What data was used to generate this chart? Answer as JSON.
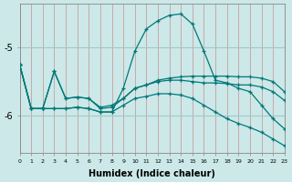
{
  "xlabel": "Humidex (Indice chaleur)",
  "background_color": "#cce8e8",
  "vgrid_color": "#c8a0a0",
  "hgrid_color": "#a0c8c8",
  "line_color": "#007878",
  "xlim": [
    0,
    23
  ],
  "ylim": [
    -6.55,
    -4.35
  ],
  "yticks": [
    -5,
    -6
  ],
  "xticks": [
    0,
    1,
    2,
    3,
    4,
    5,
    6,
    7,
    8,
    9,
    10,
    11,
    12,
    13,
    14,
    15,
    16,
    17,
    18,
    19,
    20,
    21,
    22,
    23
  ],
  "lines": [
    {
      "x": [
        0,
        1,
        2,
        3,
        4,
        5,
        6,
        7,
        8,
        9,
        10,
        11,
        12,
        13,
        14,
        15,
        16,
        17,
        18,
        19,
        20,
        21,
        22,
        23
      ],
      "y": [
        -5.25,
        -5.9,
        -5.9,
        -5.9,
        -5.9,
        -5.88,
        -5.9,
        -5.95,
        -5.95,
        -5.6,
        -5.05,
        -4.72,
        -4.6,
        -4.52,
        -4.5,
        -4.65,
        -5.05,
        -5.48,
        -5.52,
        -5.6,
        -5.65,
        -5.85,
        -6.05,
        -6.2
      ]
    },
    {
      "x": [
        0,
        1,
        2,
        3,
        4,
        5,
        6,
        7,
        8,
        9,
        10,
        11,
        12,
        13,
        14,
        15,
        16,
        17,
        18,
        19,
        20,
        21,
        22,
        23
      ],
      "y": [
        -5.25,
        -5.9,
        -5.9,
        -5.35,
        -5.75,
        -5.73,
        -5.75,
        -5.9,
        -5.88,
        -5.75,
        -5.6,
        -5.55,
        -5.5,
        -5.48,
        -5.48,
        -5.5,
        -5.52,
        -5.52,
        -5.53,
        -5.55,
        -5.55,
        -5.58,
        -5.65,
        -5.78
      ]
    },
    {
      "x": [
        0,
        1,
        2,
        3,
        4,
        5,
        6,
        7,
        8,
        9,
        10,
        11,
        12,
        13,
        14,
        15,
        16,
        17,
        18,
        19,
        20,
        21,
        22,
        23
      ],
      "y": [
        -5.25,
        -5.9,
        -5.9,
        -5.35,
        -5.75,
        -5.73,
        -5.75,
        -5.88,
        -5.85,
        -5.75,
        -5.6,
        -5.55,
        -5.48,
        -5.45,
        -5.43,
        -5.42,
        -5.42,
        -5.42,
        -5.42,
        -5.43,
        -5.43,
        -5.45,
        -5.5,
        -5.65
      ]
    },
    {
      "x": [
        0,
        1,
        2,
        3,
        4,
        5,
        6,
        7,
        8,
        9,
        10,
        11,
        12,
        13,
        14,
        15,
        16,
        17,
        18,
        19,
        20,
        21,
        22,
        23
      ],
      "y": [
        -5.25,
        -5.9,
        -5.9,
        -5.9,
        -5.9,
        -5.88,
        -5.9,
        -5.95,
        -5.95,
        -5.85,
        -5.75,
        -5.72,
        -5.68,
        -5.68,
        -5.7,
        -5.75,
        -5.85,
        -5.95,
        -6.05,
        -6.12,
        -6.18,
        -6.25,
        -6.35,
        -6.45
      ]
    }
  ]
}
